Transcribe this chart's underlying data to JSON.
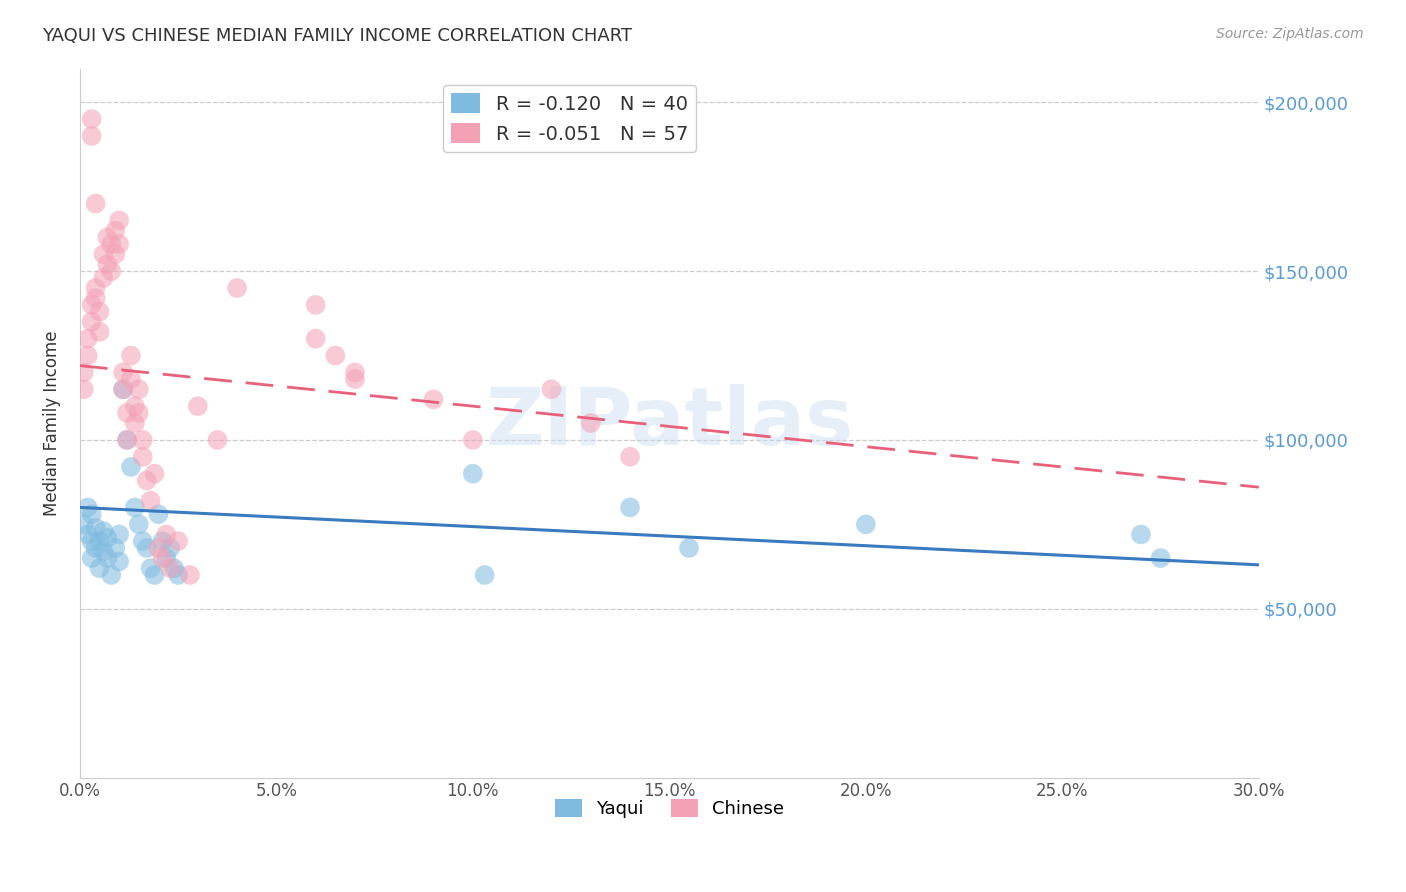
{
  "title": "YAQUI VS CHINESE MEDIAN FAMILY INCOME CORRELATION CHART",
  "source": "Source: ZipAtlas.com",
  "ylabel": "Median Family Income",
  "x_min": 0.0,
  "x_max": 0.3,
  "y_min": 0,
  "y_max": 210000,
  "yticks": [
    0,
    50000,
    100000,
    150000,
    200000
  ],
  "ytick_labels": [
    "",
    "$50,000",
    "$100,000",
    "$150,000",
    "$200,000"
  ],
  "xtick_labels": [
    "0.0%",
    "5.0%",
    "10.0%",
    "15.0%",
    "20.0%",
    "25.0%",
    "30.0%"
  ],
  "xticks": [
    0.0,
    0.05,
    0.1,
    0.15,
    0.2,
    0.25,
    0.3
  ],
  "blue_color": "#7fbbdf",
  "pink_color": "#f4a0b5",
  "blue_line_color": "#3a7abf",
  "pink_line_color": "#e8607a",
  "R_blue": -0.12,
  "N_blue": 40,
  "R_pink": -0.051,
  "N_pink": 57,
  "legend_label_blue": "Yaqui",
  "legend_label_pink": "Chinese",
  "watermark": "ZIPatlas",
  "blue_scatter_x": [
    0.001,
    0.002,
    0.002,
    0.003,
    0.003,
    0.003,
    0.004,
    0.004,
    0.005,
    0.005,
    0.006,
    0.006,
    0.007,
    0.007,
    0.008,
    0.009,
    0.01,
    0.01,
    0.011,
    0.012,
    0.013,
    0.014,
    0.015,
    0.016,
    0.017,
    0.018,
    0.019,
    0.02,
    0.021,
    0.022,
    0.023,
    0.024,
    0.025,
    0.1,
    0.103,
    0.2,
    0.27,
    0.275,
    0.14,
    0.155
  ],
  "blue_scatter_y": [
    75000,
    72000,
    80000,
    70000,
    78000,
    65000,
    68000,
    74000,
    62000,
    70000,
    67000,
    73000,
    65000,
    71000,
    60000,
    68000,
    64000,
    72000,
    115000,
    100000,
    92000,
    80000,
    75000,
    70000,
    68000,
    62000,
    60000,
    78000,
    70000,
    65000,
    68000,
    62000,
    60000,
    90000,
    60000,
    75000,
    72000,
    65000,
    80000,
    68000
  ],
  "pink_scatter_x": [
    0.001,
    0.001,
    0.002,
    0.002,
    0.003,
    0.003,
    0.004,
    0.004,
    0.005,
    0.005,
    0.006,
    0.006,
    0.007,
    0.007,
    0.008,
    0.008,
    0.009,
    0.009,
    0.01,
    0.01,
    0.011,
    0.011,
    0.012,
    0.012,
    0.013,
    0.013,
    0.014,
    0.014,
    0.015,
    0.015,
    0.016,
    0.016,
    0.017,
    0.018,
    0.019,
    0.02,
    0.021,
    0.022,
    0.023,
    0.025,
    0.028,
    0.03,
    0.035,
    0.04,
    0.06,
    0.07,
    0.09,
    0.1,
    0.12,
    0.13,
    0.14,
    0.06,
    0.065,
    0.07,
    0.003,
    0.003,
    0.004
  ],
  "pink_scatter_y": [
    120000,
    115000,
    130000,
    125000,
    140000,
    135000,
    145000,
    142000,
    138000,
    132000,
    155000,
    148000,
    160000,
    152000,
    158000,
    150000,
    162000,
    155000,
    165000,
    158000,
    120000,
    115000,
    108000,
    100000,
    125000,
    118000,
    110000,
    105000,
    115000,
    108000,
    100000,
    95000,
    88000,
    82000,
    90000,
    68000,
    65000,
    72000,
    62000,
    70000,
    60000,
    110000,
    100000,
    145000,
    140000,
    118000,
    112000,
    100000,
    115000,
    105000,
    95000,
    130000,
    125000,
    120000,
    195000,
    190000,
    170000
  ]
}
